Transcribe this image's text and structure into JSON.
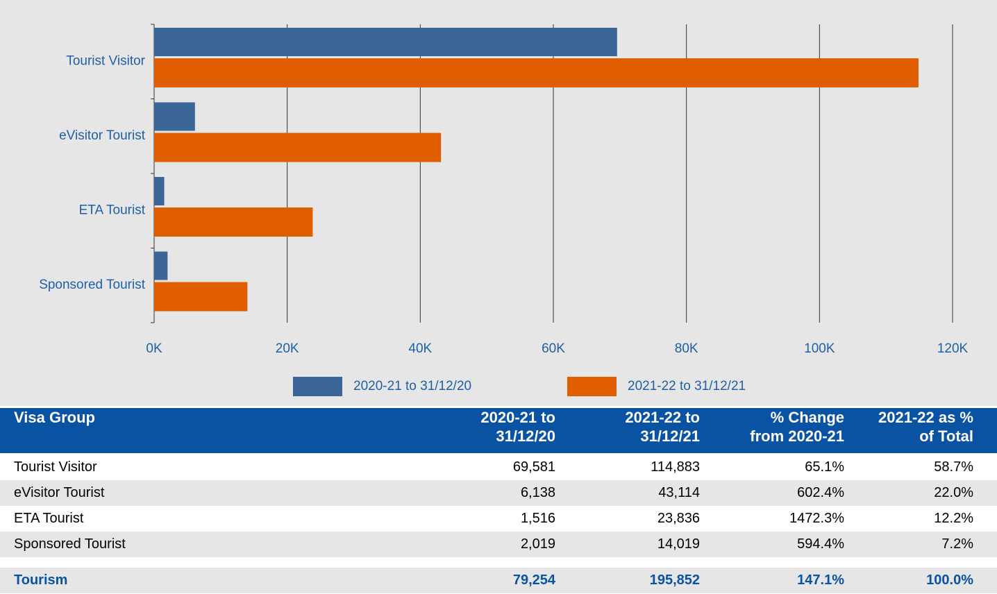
{
  "chart_data": {
    "type": "hbar",
    "categories": [
      "Tourist Visitor",
      "eVisitor Tourist",
      "ETA Tourist",
      "Sponsored Tourist"
    ],
    "series": [
      {
        "name": "2020-21 to 31/12/20",
        "color": "#3d6698",
        "values": [
          69581,
          6138,
          1516,
          2019
        ]
      },
      {
        "name": "2021-22 to 31/12/21",
        "color": "#e05d00",
        "values": [
          114883,
          43114,
          23836,
          14019
        ]
      }
    ],
    "xlim": [
      0,
      120000
    ],
    "xticks": [
      {
        "value": 0,
        "label": "0K"
      },
      {
        "value": 20000,
        "label": "20K"
      },
      {
        "value": 40000,
        "label": "40K"
      },
      {
        "value": 60000,
        "label": "60K"
      },
      {
        "value": 80000,
        "label": "80K"
      },
      {
        "value": 100000,
        "label": "100K"
      },
      {
        "value": 120000,
        "label": "120K"
      }
    ],
    "grid": true,
    "legend": "bottom"
  },
  "table": {
    "header": [
      "Visa Group",
      "2020-21 to 31/12/20",
      "2021-22 to 31/12/21",
      "% Change from 2020-21",
      "2021-22 as % of Total"
    ],
    "rows": [
      [
        "Tourist Visitor",
        "69,581",
        "114,883",
        "65.1%",
        "58.7%"
      ],
      [
        "eVisitor Tourist",
        "6,138",
        "43,114",
        "602.4%",
        "22.0%"
      ],
      [
        "ETA Tourist",
        "1,516",
        "23,836",
        "1472.3%",
        "12.2%"
      ],
      [
        "Sponsored Tourist",
        "2,019",
        "14,019",
        "594.4%",
        "7.2%"
      ]
    ],
    "total": [
      "Tourism",
      "79,254",
      "195,852",
      "147.1%",
      "100.0%"
    ]
  }
}
